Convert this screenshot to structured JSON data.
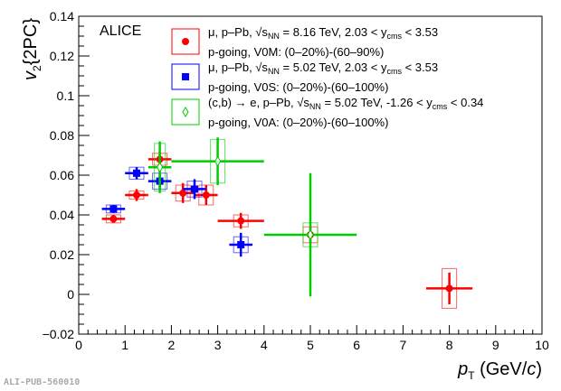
{
  "chart_data": {
    "type": "scatter",
    "title": "",
    "experiment": "ALICE",
    "xlabel": "p_T (GeV/c)",
    "ylabel": "v_2{2PC}",
    "xlim": [
      0,
      10
    ],
    "ylim": [
      -0.02,
      0.14
    ],
    "xticks": [
      "0",
      "1",
      "2",
      "3",
      "4",
      "5",
      "6",
      "7",
      "8",
      "9",
      "10"
    ],
    "yticks": [
      "−0.02",
      "0",
      "0.02",
      "0.04",
      "0.06",
      "0.08",
      "0.1",
      "0.12",
      "0.14"
    ],
    "legend_position": "top-right",
    "series": [
      {
        "name": "μ, p–Pb, √sNN = 8.16 TeV, 2.03 < ycms < 3.53",
        "line1": "μ, p–Pb, √s",
        "line1b": "NN",
        "line1c": " = 8.16 TeV, 2.03 < y",
        "line1d": "cms",
        "line1e": " < 3.53",
        "line2": "p-going, V0M: (0–20%)-(60–90%)",
        "color": "#ff0000",
        "marker": "circle",
        "x": [
          0.75,
          1.25,
          1.75,
          2.25,
          2.75,
          3.5,
          5,
          8
        ],
        "xerr": [
          0.25,
          0.25,
          0.25,
          0.25,
          0.25,
          0.5,
          0,
          0.5
        ],
        "y": [
          0.038,
          0.05,
          0.068,
          0.051,
          0.05,
          0.037,
          0.03,
          0.003
        ],
        "yerr": [
          0.002,
          0.003,
          0.004,
          0.005,
          0.005,
          0.004,
          0.004,
          0.008
        ],
        "syst": [
          0.002,
          0.002,
          0.003,
          0.004,
          0.005,
          0.003,
          0.004,
          0.01
        ]
      },
      {
        "name": "μ, p–Pb, √sNN = 5.02 TeV, 2.03 < ycms < 3.53",
        "line1": "μ, p–Pb, √s",
        "line1b": "NN",
        "line1c": " = 5.02 TeV, 2.03 < y",
        "line1d": "cms",
        "line1e": " < 3.53",
        "line2": "p-going, V0S: (0–20%)-(60–100%)",
        "color": "#0000ff",
        "marker": "square",
        "x": [
          0.75,
          1.25,
          1.75,
          2.5,
          3.5
        ],
        "xerr": [
          0.25,
          0.25,
          0.25,
          0.25,
          0.25
        ],
        "y": [
          0.043,
          0.061,
          0.057,
          0.053,
          0.025
        ],
        "yerr": [
          0.002,
          0.003,
          0.004,
          0.005,
          0.006
        ],
        "syst": [
          0.002,
          0.003,
          0.004,
          0.004,
          0.004
        ]
      },
      {
        "name": "(c,b) → e, p–Pb, √sNN = 5.02 TeV, -1.26 < ycms < 0.34",
        "line1": "(c,b) → e, p–Pb, √s",
        "line1b": "NN",
        "line1c": " = 5.02 TeV, -1.26 < y",
        "line1d": "cms",
        "line1e": " < 0.34",
        "line2": "p-going, V0A: (0–20%)-(60–100%)",
        "color": "#00cc00",
        "marker": "open-diamond",
        "x": [
          1.75,
          3,
          5
        ],
        "xerr": [
          0.25,
          1,
          1
        ],
        "y": [
          0.064,
          0.067,
          0.03
        ],
        "yerr": [
          0.013,
          0.012,
          0.031
        ],
        "syst": [
          0.012,
          0.011,
          0.006
        ]
      }
    ]
  },
  "watermark": "ALI-PUB-560010"
}
